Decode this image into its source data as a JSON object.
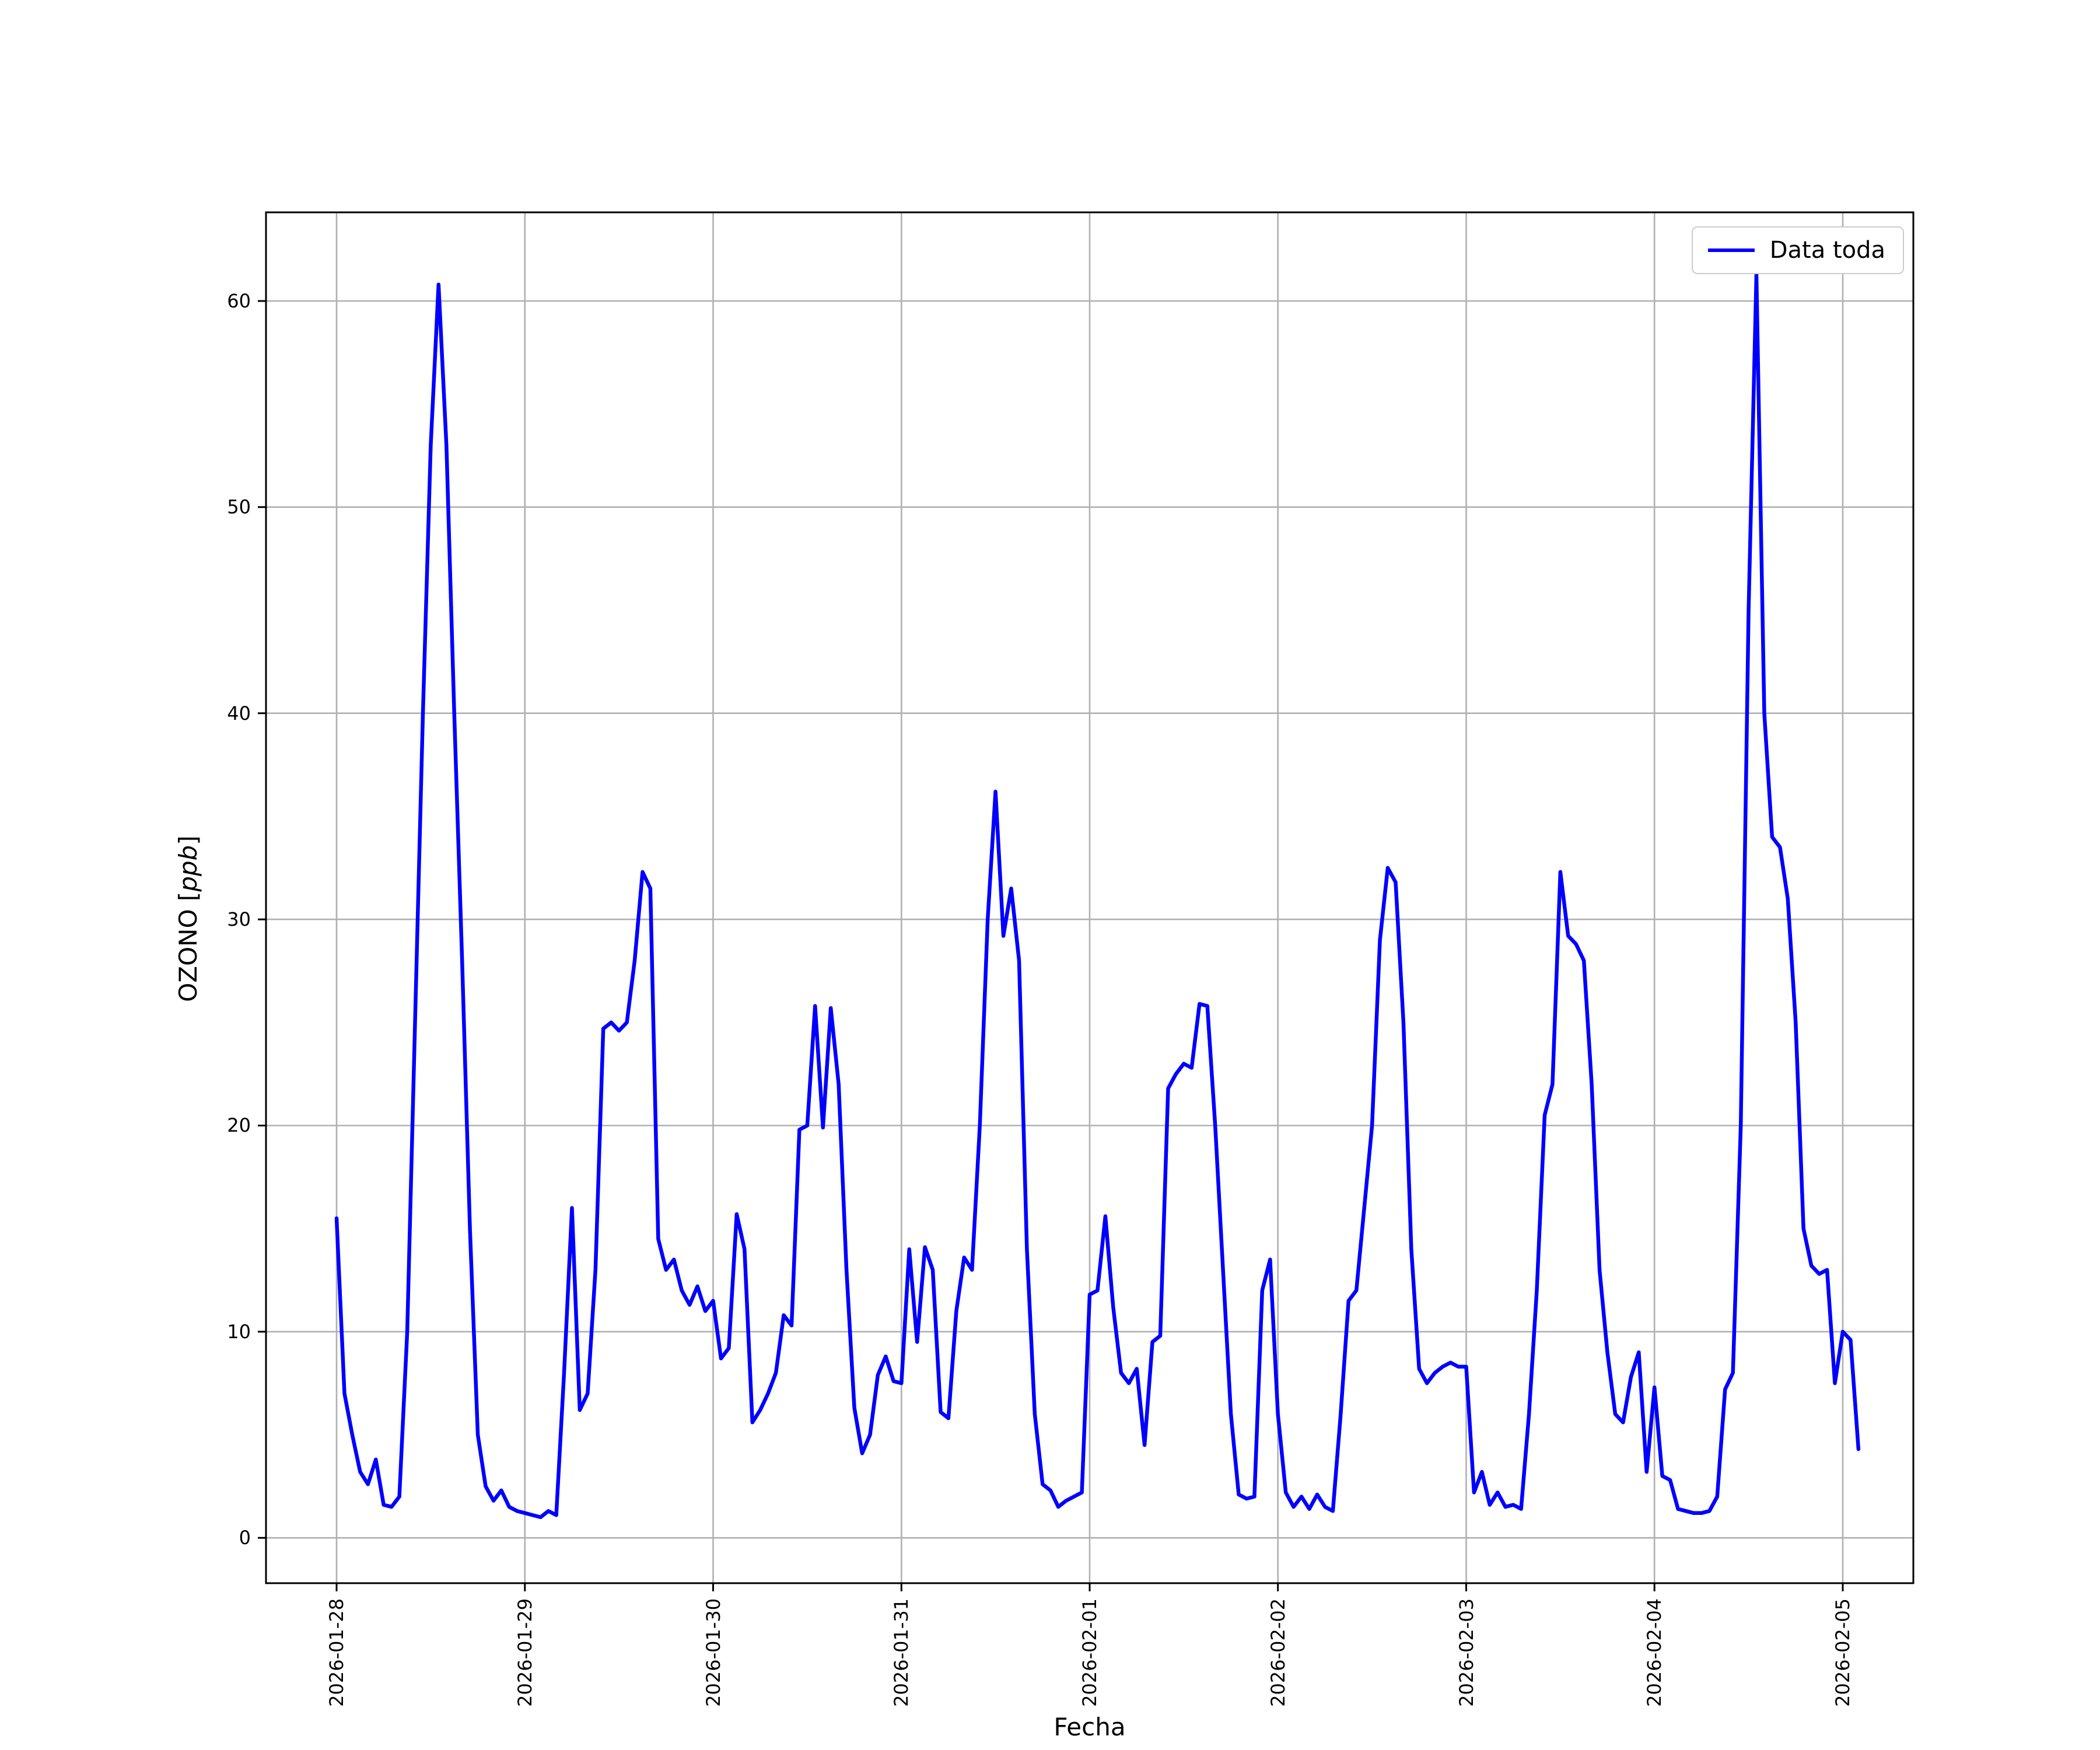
{
  "chart_data": {
    "type": "line",
    "title": "",
    "xlabel": "Fecha",
    "ylabel": "OZONO [ppb]",
    "ylabel_parts": {
      "prefix": "OZONO [",
      "italic": "ppb",
      "suffix": "]"
    },
    "grid": true,
    "line_color": "#0000ff",
    "grid_color": "#b0b0b0",
    "legend": {
      "position": "upper right",
      "entries": [
        {
          "label": "Data toda",
          "color": "#0000ff"
        }
      ]
    },
    "x_tick_labels": [
      "2026-01-28",
      "2026-01-29",
      "2026-01-30",
      "2026-01-31",
      "2026-02-01",
      "2026-02-02",
      "2026-02-03",
      "2026-02-04",
      "2026-02-05"
    ],
    "y_ticks": [
      0,
      10,
      20,
      30,
      40,
      50,
      60
    ],
    "xlim_days": [
      -0.375,
      8.375
    ],
    "ylim": [
      -2.2,
      64.3
    ],
    "series": [
      {
        "name": "Data toda",
        "color": "#0000ff",
        "x_unit": "hours_since_2026-01-28_00:00",
        "points": [
          [
            0,
            15.5
          ],
          [
            1,
            7.0
          ],
          [
            2,
            5.0
          ],
          [
            3,
            3.2
          ],
          [
            4,
            2.6
          ],
          [
            5,
            3.8
          ],
          [
            6,
            1.6
          ],
          [
            7,
            1.5
          ],
          [
            8,
            2.0
          ],
          [
            9,
            10.0
          ],
          [
            10,
            25.0
          ],
          [
            11,
            40.0
          ],
          [
            12,
            53.0
          ],
          [
            13,
            60.8
          ],
          [
            14,
            53.0
          ],
          [
            15,
            40.0
          ],
          [
            16,
            28.0
          ],
          [
            17,
            15.0
          ],
          [
            18,
            5.0
          ],
          [
            19,
            2.5
          ],
          [
            20,
            1.8
          ],
          [
            21,
            2.3
          ],
          [
            22,
            1.5
          ],
          [
            23,
            1.3
          ],
          [
            24,
            1.2
          ],
          [
            25,
            1.1
          ],
          [
            26,
            1.0
          ],
          [
            27,
            1.3
          ],
          [
            28,
            1.1
          ],
          [
            29,
            8.0
          ],
          [
            30,
            16.0
          ],
          [
            31,
            6.2
          ],
          [
            32,
            7.0
          ],
          [
            33,
            13.0
          ],
          [
            34,
            24.7
          ],
          [
            35,
            25.0
          ],
          [
            36,
            24.6
          ],
          [
            37,
            25.0
          ],
          [
            38,
            28.0
          ],
          [
            39,
            32.3
          ],
          [
            40,
            31.5
          ],
          [
            41,
            14.5
          ],
          [
            42,
            13.0
          ],
          [
            43,
            13.5
          ],
          [
            44,
            12.0
          ],
          [
            45,
            11.3
          ],
          [
            46,
            12.2
          ],
          [
            47,
            11.0
          ],
          [
            48,
            11.5
          ],
          [
            49,
            8.7
          ],
          [
            50,
            9.2
          ],
          [
            51,
            15.7
          ],
          [
            52,
            14.0
          ],
          [
            53,
            5.6
          ],
          [
            54,
            6.2
          ],
          [
            55,
            7.0
          ],
          [
            56,
            8.0
          ],
          [
            57,
            10.8
          ],
          [
            58,
            10.3
          ],
          [
            59,
            19.8
          ],
          [
            60,
            20.0
          ],
          [
            61,
            25.8
          ],
          [
            62,
            19.9
          ],
          [
            63,
            25.7
          ],
          [
            64,
            22.0
          ],
          [
            65,
            13.0
          ],
          [
            66,
            6.3
          ],
          [
            67,
            4.1
          ],
          [
            68,
            5.0
          ],
          [
            69,
            7.9
          ],
          [
            70,
            8.8
          ],
          [
            71,
            7.6
          ],
          [
            72,
            7.5
          ],
          [
            73,
            14.0
          ],
          [
            74,
            9.5
          ],
          [
            75,
            14.1
          ],
          [
            76,
            13.0
          ],
          [
            77,
            6.1
          ],
          [
            78,
            5.8
          ],
          [
            79,
            11.0
          ],
          [
            80,
            13.6
          ],
          [
            81,
            13.0
          ],
          [
            82,
            20.0
          ],
          [
            83,
            30.0
          ],
          [
            84,
            36.2
          ],
          [
            85,
            29.2
          ],
          [
            86,
            31.5
          ],
          [
            87,
            28.0
          ],
          [
            88,
            14.0
          ],
          [
            89,
            6.0
          ],
          [
            90,
            2.6
          ],
          [
            91,
            2.3
          ],
          [
            92,
            1.5
          ],
          [
            93,
            1.8
          ],
          [
            94,
            2.0
          ],
          [
            95,
            2.2
          ],
          [
            96,
            11.8
          ],
          [
            97,
            12.0
          ],
          [
            98,
            15.6
          ],
          [
            99,
            11.2
          ],
          [
            100,
            8.0
          ],
          [
            101,
            7.5
          ],
          [
            102,
            8.2
          ],
          [
            103,
            4.5
          ],
          [
            104,
            9.5
          ],
          [
            105,
            9.8
          ],
          [
            106,
            21.8
          ],
          [
            107,
            22.5
          ],
          [
            108,
            23.0
          ],
          [
            109,
            22.8
          ],
          [
            110,
            25.9
          ],
          [
            111,
            25.8
          ],
          [
            112,
            20.0
          ],
          [
            113,
            13.0
          ],
          [
            114,
            6.0
          ],
          [
            115,
            2.1
          ],
          [
            116,
            1.9
          ],
          [
            117,
            2.0
          ],
          [
            118,
            12.0
          ],
          [
            119,
            13.5
          ],
          [
            120,
            6.0
          ],
          [
            121,
            2.2
          ],
          [
            122,
            1.5
          ],
          [
            123,
            2.0
          ],
          [
            124,
            1.4
          ],
          [
            125,
            2.1
          ],
          [
            126,
            1.5
          ],
          [
            127,
            1.3
          ],
          [
            128,
            6.0
          ],
          [
            129,
            11.5
          ],
          [
            130,
            12.0
          ],
          [
            131,
            16.0
          ],
          [
            132,
            20.0
          ],
          [
            133,
            29.0
          ],
          [
            134,
            32.5
          ],
          [
            135,
            31.8
          ],
          [
            136,
            25.0
          ],
          [
            137,
            14.0
          ],
          [
            138,
            8.2
          ],
          [
            139,
            7.5
          ],
          [
            140,
            8.0
          ],
          [
            141,
            8.3
          ],
          [
            142,
            8.5
          ],
          [
            143,
            8.3
          ],
          [
            144,
            8.3
          ],
          [
            145,
            2.2
          ],
          [
            146,
            3.2
          ],
          [
            147,
            1.6
          ],
          [
            148,
            2.2
          ],
          [
            149,
            1.5
          ],
          [
            150,
            1.6
          ],
          [
            151,
            1.4
          ],
          [
            152,
            6.0
          ],
          [
            153,
            12.0
          ],
          [
            154,
            20.5
          ],
          [
            155,
            22.0
          ],
          [
            156,
            32.3
          ],
          [
            157,
            29.2
          ],
          [
            158,
            28.8
          ],
          [
            159,
            28.0
          ],
          [
            160,
            22.0
          ],
          [
            161,
            13.0
          ],
          [
            162,
            9.0
          ],
          [
            163,
            6.0
          ],
          [
            164,
            5.6
          ],
          [
            165,
            7.8
          ],
          [
            166,
            9.0
          ],
          [
            167,
            3.2
          ],
          [
            168,
            7.3
          ],
          [
            169,
            3.0
          ],
          [
            170,
            2.8
          ],
          [
            171,
            1.4
          ],
          [
            172,
            1.3
          ],
          [
            173,
            1.2
          ],
          [
            174,
            1.2
          ],
          [
            175,
            1.3
          ],
          [
            176,
            2.0
          ],
          [
            177,
            7.2
          ],
          [
            178,
            8.0
          ],
          [
            179,
            20.0
          ],
          [
            180,
            45.0
          ],
          [
            181,
            61.3
          ],
          [
            182,
            40.0
          ],
          [
            183,
            34.0
          ],
          [
            184,
            33.5
          ],
          [
            185,
            31.0
          ],
          [
            186,
            25.0
          ],
          [
            187,
            15.0
          ],
          [
            188,
            13.2
          ],
          [
            189,
            12.8
          ],
          [
            190,
            13.0
          ],
          [
            191,
            7.5
          ],
          [
            192,
            10.0
          ],
          [
            193,
            9.6
          ],
          [
            194,
            4.3
          ]
        ]
      }
    ]
  }
}
